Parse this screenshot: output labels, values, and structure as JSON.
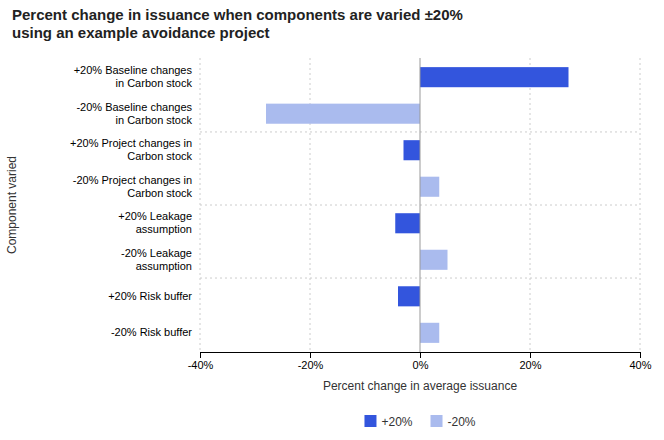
{
  "chart_data": {
    "type": "bar",
    "orientation": "horizontal",
    "stacked": true,
    "title": "Percent change in issuance when components are varied ±20%\nusing an example avoidance project",
    "xlabel": "Percent change in average issuance",
    "ylabel": "Component varied",
    "categories": [
      "+20% Baseline changes\nin Carbon stock",
      "-20% Baseline changes\nin Carbon stock",
      "+20% Project changes in\nCarbon stock",
      "-20% Project changes in\nCarbon stock",
      "+20% Leakage\nassumption",
      "-20% Leakage\nassumption",
      "+20% Risk buffer",
      "-20% Risk buffer"
    ],
    "series": [
      {
        "name": "+20%",
        "color": "#3355dd",
        "values": [
          27.0,
          null,
          -3.0,
          null,
          -4.5,
          null,
          -4.0,
          null
        ]
      },
      {
        "name": "-20%",
        "color": "#aabbee",
        "values": [
          null,
          -28.0,
          null,
          3.5,
          null,
          5.0,
          null,
          3.5
        ]
      }
    ],
    "xlim": [
      -40,
      40
    ],
    "xticks": [
      {
        "value": -40,
        "label": "-40%"
      },
      {
        "value": -20,
        "label": "-20%"
      },
      {
        "value": 0,
        "label": "0%"
      },
      {
        "value": 20,
        "label": "20%"
      },
      {
        "value": 40,
        "label": "40%"
      }
    ],
    "grid": true,
    "legend": "bottom"
  }
}
